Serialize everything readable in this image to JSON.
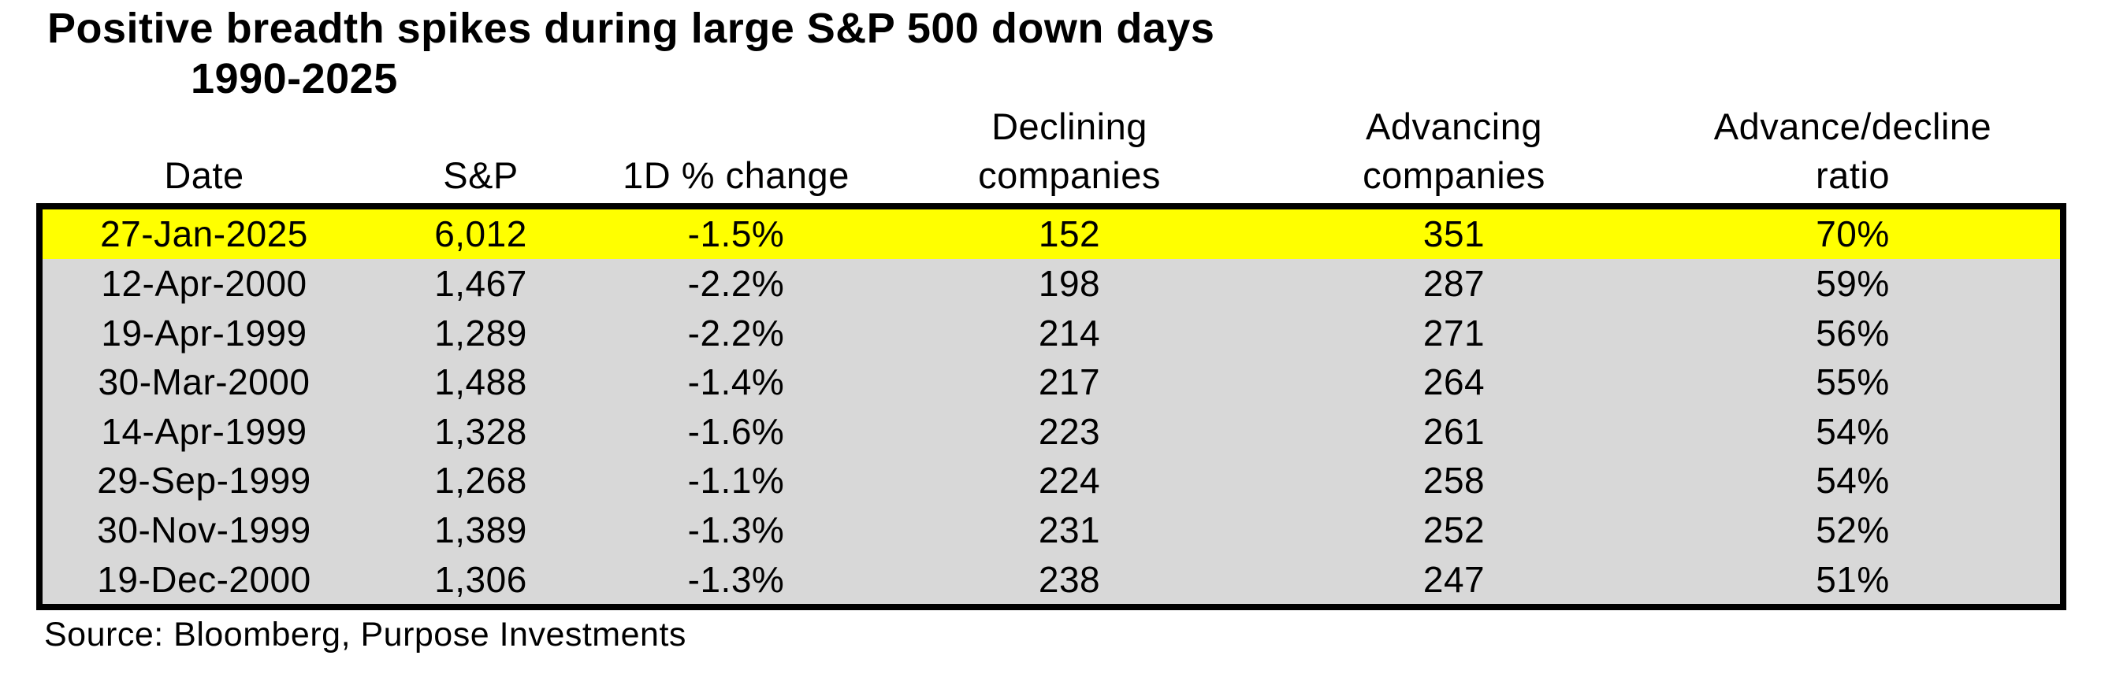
{
  "title": {
    "line1": "Positive breadth spikes during large S&P 500 down days",
    "line2": "1990-2025"
  },
  "table": {
    "columns": [
      {
        "line1": "Date",
        "line2": ""
      },
      {
        "line1": "S&P",
        "line2": ""
      },
      {
        "line1": "1D % change",
        "line2": ""
      },
      {
        "line1": "Declining",
        "line2": "companies"
      },
      {
        "line1": "Advancing",
        "line2": "companies"
      },
      {
        "line1": "Advance/decline",
        "line2": "ratio"
      }
    ],
    "rows": [
      {
        "highlight": true,
        "cells": [
          "27-Jan-2025",
          "6,012",
          "-1.5%",
          "152",
          "351",
          "70%"
        ]
      },
      {
        "highlight": false,
        "cells": [
          "12-Apr-2000",
          "1,467",
          "-2.2%",
          "198",
          "287",
          "59%"
        ]
      },
      {
        "highlight": false,
        "cells": [
          "19-Apr-1999",
          "1,289",
          "-2.2%",
          "214",
          "271",
          "56%"
        ]
      },
      {
        "highlight": false,
        "cells": [
          "30-Mar-2000",
          "1,488",
          "-1.4%",
          "217",
          "264",
          "55%"
        ]
      },
      {
        "highlight": false,
        "cells": [
          "14-Apr-1999",
          "1,328",
          "-1.6%",
          "223",
          "261",
          "54%"
        ]
      },
      {
        "highlight": false,
        "cells": [
          "29-Sep-1999",
          "1,268",
          "-1.1%",
          "224",
          "258",
          "54%"
        ]
      },
      {
        "highlight": false,
        "cells": [
          "30-Nov-1999",
          "1,389",
          "-1.3%",
          "231",
          "252",
          "52%"
        ]
      },
      {
        "highlight": false,
        "cells": [
          "19-Dec-2000",
          "1,306",
          "-1.3%",
          "238",
          "247",
          "51%"
        ]
      }
    ]
  },
  "source": "Source: Bloomberg, Purpose Investments",
  "colors": {
    "highlight": "#FFFF00",
    "row_background": "#D8D8D8",
    "border": "#000000",
    "text": "#000000",
    "page_background": "#FFFFFF"
  },
  "chart_data": {
    "type": "table",
    "title": "Positive breadth spikes during large S&P 500 down days",
    "subtitle": "1990-2025",
    "columns": [
      "Date",
      "S&P",
      "1D % change",
      "Declining companies",
      "Advancing companies",
      "Advance/decline ratio"
    ],
    "rows": [
      [
        "27-Jan-2025",
        6012,
        -1.5,
        152,
        351,
        70
      ],
      [
        "12-Apr-2000",
        1467,
        -2.2,
        198,
        287,
        59
      ],
      [
        "19-Apr-1999",
        1289,
        -2.2,
        214,
        271,
        56
      ],
      [
        "30-Mar-2000",
        1488,
        -1.4,
        217,
        264,
        55
      ],
      [
        "14-Apr-1999",
        1328,
        -1.6,
        223,
        261,
        54
      ],
      [
        "29-Sep-1999",
        1268,
        -1.1,
        224,
        258,
        54
      ],
      [
        "30-Nov-1999",
        1389,
        -1.3,
        231,
        252,
        52
      ],
      [
        "19-Dec-2000",
        1306,
        -1.3,
        238,
        247,
        51
      ]
    ],
    "units": {
      "1D % change": "percent",
      "Advance/decline ratio": "percent"
    },
    "highlighted_row": "27-Jan-2025",
    "source": "Source: Bloomberg, Purpose Investments"
  }
}
